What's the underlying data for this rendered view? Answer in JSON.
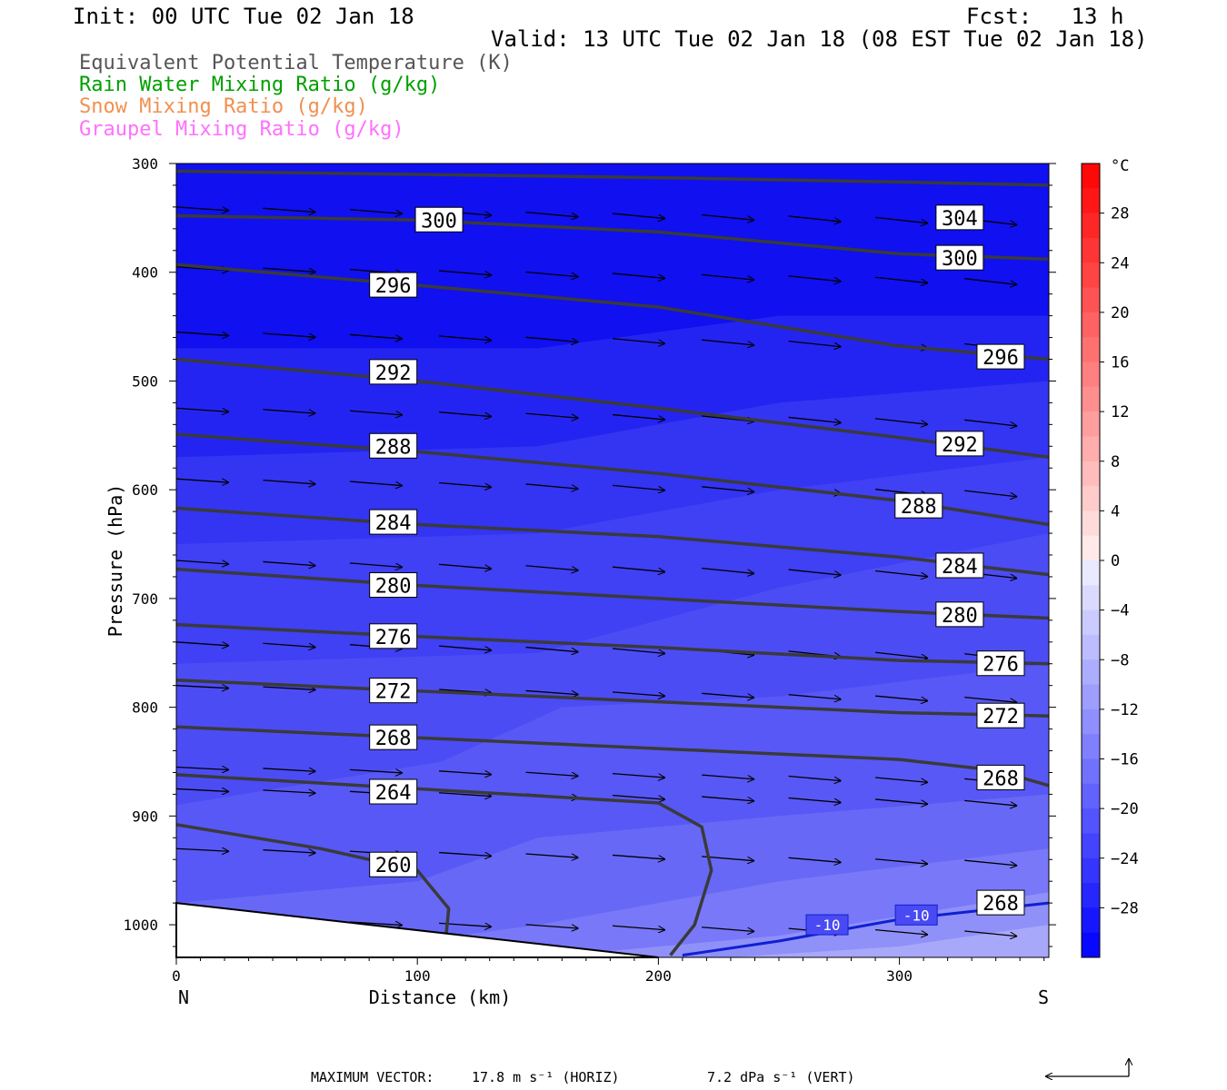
{
  "header": {
    "init": "Init: 00 UTC Tue 02 Jan 18",
    "fcst": "Fcst:   13 h",
    "valid": "Valid: 13 UTC Tue 02 Jan 18 (08 EST Tue 02 Jan 18)"
  },
  "legend": [
    {
      "label": "Equivalent Potential Temperature (K)",
      "color": "#555555"
    },
    {
      "label": "Rain Water Mixing Ratio (g/kg)",
      "color": "#00a000"
    },
    {
      "label": "Snow Mixing Ratio (g/kg)",
      "color": "#f09050"
    },
    {
      "label": "Graupel Mixing Ratio (g/kg)",
      "color": "#ff70ff"
    }
  ],
  "chart_data": {
    "type": "cross-section",
    "xlabel": "Distance (km)",
    "ylabel": "Pressure (hPa)",
    "xlim": [
      0,
      362
    ],
    "ylim": [
      300,
      1030
    ],
    "x_ticks": [
      0,
      100,
      200,
      300
    ],
    "y_ticks": [
      300,
      400,
      500,
      600,
      700,
      800,
      900,
      1000
    ],
    "x_end_labels": {
      "left": "N",
      "right": "S"
    },
    "theta_e_contours": [
      {
        "value": 304,
        "labels": [
          {
            "x": 325,
            "p": 350
          }
        ],
        "points": [
          [
            0,
            307
          ],
          [
            100,
            310
          ],
          [
            200,
            313
          ],
          [
            300,
            317
          ],
          [
            362,
            320
          ]
        ]
      },
      {
        "value": 300,
        "labels": [
          {
            "x": 109,
            "p": 352
          },
          {
            "x": 325,
            "p": 387
          }
        ],
        "points": [
          [
            0,
            348
          ],
          [
            100,
            352
          ],
          [
            200,
            363
          ],
          [
            300,
            383
          ],
          [
            362,
            388
          ]
        ]
      },
      {
        "value": 296,
        "labels": [
          {
            "x": 90,
            "p": 412
          },
          {
            "x": 342,
            "p": 478
          }
        ],
        "points": [
          [
            0,
            393
          ],
          [
            100,
            412
          ],
          [
            200,
            432
          ],
          [
            300,
            468
          ],
          [
            362,
            480
          ]
        ]
      },
      {
        "value": 292,
        "labels": [
          {
            "x": 90,
            "p": 492
          },
          {
            "x": 325,
            "p": 558
          }
        ],
        "points": [
          [
            0,
            480
          ],
          [
            100,
            500
          ],
          [
            200,
            525
          ],
          [
            300,
            552
          ],
          [
            362,
            570
          ]
        ]
      },
      {
        "value": 288,
        "labels": [
          {
            "x": 90,
            "p": 560
          },
          {
            "x": 308,
            "p": 615
          }
        ],
        "points": [
          [
            0,
            549
          ],
          [
            100,
            565
          ],
          [
            200,
            585
          ],
          [
            300,
            610
          ],
          [
            362,
            632
          ]
        ]
      },
      {
        "value": 284,
        "labels": [
          {
            "x": 90,
            "p": 630
          },
          {
            "x": 325,
            "p": 670
          }
        ],
        "points": [
          [
            0,
            617
          ],
          [
            100,
            632
          ],
          [
            200,
            643
          ],
          [
            300,
            662
          ],
          [
            362,
            678
          ]
        ]
      },
      {
        "value": 280,
        "labels": [
          {
            "x": 90,
            "p": 688
          },
          {
            "x": 325,
            "p": 715
          }
        ],
        "points": [
          [
            0,
            673
          ],
          [
            100,
            688
          ],
          [
            200,
            700
          ],
          [
            300,
            712
          ],
          [
            362,
            718
          ]
        ]
      },
      {
        "value": 276,
        "labels": [
          {
            "x": 90,
            "p": 735
          },
          {
            "x": 342,
            "p": 760
          }
        ],
        "points": [
          [
            0,
            724
          ],
          [
            100,
            735
          ],
          [
            200,
            745
          ],
          [
            300,
            757
          ],
          [
            362,
            760
          ]
        ]
      },
      {
        "value": 272,
        "labels": [
          {
            "x": 90,
            "p": 785
          },
          {
            "x": 342,
            "p": 808
          }
        ],
        "points": [
          [
            0,
            775
          ],
          [
            100,
            785
          ],
          [
            200,
            795
          ],
          [
            300,
            805
          ],
          [
            362,
            808
          ]
        ]
      },
      {
        "value": 268,
        "labels": [
          {
            "x": 90,
            "p": 828
          },
          {
            "x": 342,
            "p": 865
          },
          {
            "x": 342,
            "p": 980
          }
        ],
        "points": [
          [
            0,
            818
          ],
          [
            100,
            828
          ],
          [
            200,
            838
          ],
          [
            300,
            848
          ],
          [
            340,
            858
          ],
          [
            362,
            872
          ]
        ]
      },
      {
        "value": 264,
        "labels": [
          {
            "x": 90,
            "p": 878
          }
        ],
        "points": [
          [
            0,
            862
          ],
          [
            100,
            875
          ],
          [
            200,
            888
          ],
          [
            218,
            910
          ],
          [
            222,
            950
          ],
          [
            215,
            1000
          ],
          [
            205,
            1028
          ]
        ]
      },
      {
        "value": 260,
        "labels": [
          {
            "x": 90,
            "p": 945
          }
        ],
        "points": [
          [
            0,
            908
          ],
          [
            60,
            930
          ],
          [
            100,
            950
          ],
          [
            113,
            985
          ],
          [
            112,
            1008
          ]
        ]
      }
    ],
    "temperature_isotherm": {
      "value": -10,
      "labels": [
        {
          "x": 270,
          "p": 1000
        },
        {
          "x": 307,
          "p": 991
        }
      ],
      "points": [
        [
          210,
          1028
        ],
        [
          250,
          1015
        ],
        [
          300,
          995
        ],
        [
          362,
          980
        ]
      ]
    },
    "colorbar": {
      "unit": "°C",
      "tick_labels": [
        "28",
        "24",
        "20",
        "16",
        "12",
        "8",
        "4",
        "0",
        "−4",
        "−8",
        "−12",
        "−16",
        "−20",
        "−24",
        "−28"
      ],
      "range": [
        -32,
        32
      ],
      "step": 2
    },
    "footer": {
      "max_vector_label": "MAXIMUM VECTOR:",
      "horiz": "17.8 m s⁻¹ (HORIZ)",
      "vert": "7.2 dPa s⁻¹ (VERT)"
    }
  }
}
